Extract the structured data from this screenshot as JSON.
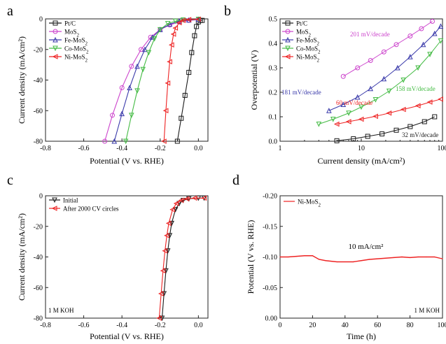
{
  "chart_data": [
    {
      "panel": "a",
      "type": "line",
      "xlabel": "Potential (V vs. RHE)",
      "ylabel": "Current density (mA/cm²)",
      "xlim": [
        -0.8,
        0.05
      ],
      "ylim": [
        -80,
        0
      ],
      "xticks": [
        -0.8,
        -0.6,
        -0.4,
        -0.2,
        0.0
      ],
      "yticks": [
        0,
        -20,
        -40,
        -60,
        -80
      ],
      "legend": "top-left",
      "series": [
        {
          "name": "Pt/C",
          "color": "#1a1a1a",
          "marker": "square",
          "x": [
            -0.11,
            -0.09,
            -0.07,
            -0.05,
            -0.035,
            -0.02,
            -0.01,
            0.0,
            0.01,
            0.02
          ],
          "y": [
            -80,
            -65,
            -50,
            -35,
            -22,
            -11,
            -5,
            -2,
            -1,
            -1
          ]
        },
        {
          "name": "MoS2",
          "color": "#cc44cc",
          "marker": "circle",
          "x": [
            -0.49,
            -0.45,
            -0.4,
            -0.35,
            -0.3,
            -0.25,
            -0.2,
            -0.15,
            -0.1,
            -0.05,
            0.0
          ],
          "y": [
            -80,
            -63,
            -45,
            -31,
            -20,
            -12,
            -7,
            -4,
            -2,
            -1,
            -0.5
          ]
        },
        {
          "name": "Fe-MoS2",
          "color": "#3a3aaa",
          "marker": "triangle-up",
          "x": [
            -0.44,
            -0.4,
            -0.36,
            -0.32,
            -0.28,
            -0.24,
            -0.2,
            -0.15,
            -0.1,
            -0.05,
            0.0
          ],
          "y": [
            -80,
            -62,
            -45,
            -31,
            -20,
            -12,
            -7,
            -3.5,
            -1.5,
            -0.8,
            -0.3
          ]
        },
        {
          "name": "Co-MoS2",
          "color": "#44bb44",
          "marker": "triangle-down",
          "x": [
            -0.38,
            -0.35,
            -0.32,
            -0.29,
            -0.26,
            -0.23,
            -0.2,
            -0.16,
            -0.12,
            -0.08,
            0.0
          ],
          "y": [
            -80,
            -63,
            -47,
            -33,
            -22,
            -13,
            -7,
            -3,
            -1.5,
            -0.7,
            -0.2
          ]
        },
        {
          "name": "Ni-MoS2",
          "color": "#ee2222",
          "marker": "triangle-left",
          "x": [
            -0.18,
            -0.17,
            -0.16,
            -0.15,
            -0.14,
            -0.13,
            -0.12,
            -0.1,
            -0.08,
            -0.05,
            0.0
          ],
          "y": [
            -80,
            -60,
            -42,
            -28,
            -17,
            -10,
            -6,
            -2.5,
            -1,
            -0.5,
            -0.2
          ]
        }
      ]
    },
    {
      "panel": "b",
      "type": "scatter",
      "xlabel": "Current density (mA/cm²)",
      "ylabel": "Overpotential (V)",
      "xscale": "log",
      "xlim": [
        1,
        100
      ],
      "ylim": [
        0.0,
        0.5
      ],
      "xticks": [
        1,
        10,
        100
      ],
      "yticks": [
        0.0,
        0.1,
        0.2,
        0.3,
        0.4,
        0.5
      ],
      "legend": "top-left",
      "series": [
        {
          "name": "Pt/C",
          "color": "#1a1a1a",
          "marker": "square",
          "tafel": "32 mV/decade",
          "x": [
            5,
            8,
            12,
            18,
            27,
            40,
            60,
            80
          ],
          "y": [
            0.002,
            0.01,
            0.02,
            0.03,
            0.045,
            0.06,
            0.08,
            0.1
          ]
        },
        {
          "name": "MoS2",
          "color": "#cc44cc",
          "marker": "circle",
          "tafel": "201 mV/decade",
          "x": [
            6,
            9,
            13,
            19,
            27,
            40,
            55,
            75
          ],
          "y": [
            0.265,
            0.3,
            0.33,
            0.365,
            0.395,
            0.43,
            0.46,
            0.49
          ]
        },
        {
          "name": "Fe-MoS2",
          "color": "#3a3aaa",
          "marker": "triangle-up",
          "tafel": "181 mV/decade",
          "x": [
            4,
            6,
            9,
            13,
            19,
            28,
            40,
            58,
            80,
            95
          ],
          "y": [
            0.125,
            0.15,
            0.18,
            0.215,
            0.255,
            0.3,
            0.345,
            0.395,
            0.44,
            0.47
          ]
        },
        {
          "name": "Co-MoS2",
          "color": "#44bb44",
          "marker": "triangle-down",
          "tafel": "158 mV/decade",
          "x": [
            3,
            4.5,
            7,
            10,
            15,
            22,
            33,
            50,
            70,
            95
          ],
          "y": [
            0.07,
            0.09,
            0.115,
            0.14,
            0.17,
            0.205,
            0.25,
            0.3,
            0.355,
            0.41
          ]
        },
        {
          "name": "Ni-MoS2",
          "color": "#ee2222",
          "marker": "triangle-left",
          "tafel": "60 mV/decade",
          "x": [
            5,
            7,
            10,
            15,
            22,
            33,
            50,
            70,
            95
          ],
          "y": [
            0.07,
            0.08,
            0.09,
            0.102,
            0.115,
            0.13,
            0.145,
            0.16,
            0.172
          ]
        }
      ],
      "annotations": [
        {
          "text": "201 mV/decade",
          "color": "#cc44cc"
        },
        {
          "text": "181 mV/decade",
          "color": "#3a3aaa"
        },
        {
          "text": "158 mV/decade",
          "color": "#44bb44"
        },
        {
          "text": "60 mV/decade",
          "color": "#ee2222"
        },
        {
          "text": "32 mV/decade",
          "color": "#1a1a1a"
        }
      ]
    },
    {
      "panel": "c",
      "type": "line",
      "xlabel": "Potential (V vs. RHE)",
      "ylabel": "Current density (mA/cm²)",
      "xlim": [
        -0.8,
        0.05
      ],
      "ylim": [
        -80,
        0
      ],
      "xticks": [
        -0.8,
        -0.6,
        -0.4,
        -0.2,
        0.0
      ],
      "yticks": [
        0,
        -20,
        -40,
        -60,
        -80
      ],
      "legend": "top-left",
      "note": "1 M KOH",
      "series": [
        {
          "name": "Initial",
          "color": "#1a1a1a",
          "marker": "triangle-down",
          "x": [
            -0.19,
            -0.18,
            -0.17,
            -0.16,
            -0.15,
            -0.14,
            -0.12,
            -0.1,
            -0.08,
            -0.05,
            0.0,
            0.03
          ],
          "y": [
            -80,
            -64,
            -49,
            -36,
            -26,
            -18,
            -9,
            -5,
            -3,
            -2,
            -1.5,
            -1.5
          ]
        },
        {
          "name": "After 2000 CV circles",
          "color": "#ee2222",
          "marker": "triangle-left",
          "x": [
            -0.205,
            -0.195,
            -0.185,
            -0.175,
            -0.165,
            -0.155,
            -0.135,
            -0.115,
            -0.09,
            -0.06,
            -0.02,
            0.03
          ],
          "y": [
            -80,
            -64,
            -49,
            -36,
            -26,
            -18,
            -9,
            -5,
            -3,
            -2,
            -1.5,
            -1.5
          ]
        }
      ]
    },
    {
      "panel": "d",
      "type": "line",
      "xlabel": "Time (h)",
      "ylabel": "Potential (V vs. RHE)",
      "xlim": [
        0,
        100
      ],
      "ylim": [
        0.0,
        -0.2
      ],
      "xticks": [
        0,
        20,
        40,
        60,
        80,
        100
      ],
      "yticks": [
        -0.2,
        -0.15,
        -0.1,
        -0.05,
        0.0
      ],
      "legend": "top-left",
      "annotation": "10 mA/cm²",
      "note": "1 M KOH",
      "series": [
        {
          "name": "Ni-MoS2",
          "color": "#ee2222",
          "x": [
            0,
            5,
            10,
            15,
            20,
            24,
            28,
            35,
            45,
            50,
            55,
            65,
            70,
            75,
            80,
            85,
            90,
            95,
            100
          ],
          "y": [
            -0.1,
            -0.1,
            -0.101,
            -0.102,
            -0.102,
            -0.096,
            -0.094,
            -0.092,
            -0.092,
            -0.094,
            -0.096,
            -0.098,
            -0.099,
            -0.1,
            -0.099,
            -0.1,
            -0.1,
            -0.1,
            -0.097
          ]
        }
      ]
    }
  ],
  "panel_letters": [
    "a",
    "b",
    "c",
    "d"
  ],
  "legend_labels": {
    "pt": "Pt/C",
    "mos2": "MoS",
    "fe": "Fe-MoS",
    "co": "Co-MoS",
    "ni": "Ni-MoS",
    "sub2": "2",
    "initial": "Initial",
    "after": "After 2000 CV circles"
  },
  "tick_labels": {
    "a_x": [
      "-0.8",
      "-0.6",
      "-0.4",
      "-0.2",
      "0.0"
    ],
    "a_y": [
      "0",
      "-20",
      "-40",
      "-60",
      "-80"
    ],
    "b_x": [
      "1",
      "10",
      "100"
    ],
    "b_y": [
      "0.0",
      "0.1",
      "0.2",
      "0.3",
      "0.4",
      "0.5"
    ],
    "d_x": [
      "0",
      "20",
      "40",
      "60",
      "80",
      "100"
    ],
    "d_y": [
      "-0.20",
      "-0.15",
      "-0.10",
      "-0.05",
      "0.00"
    ]
  }
}
